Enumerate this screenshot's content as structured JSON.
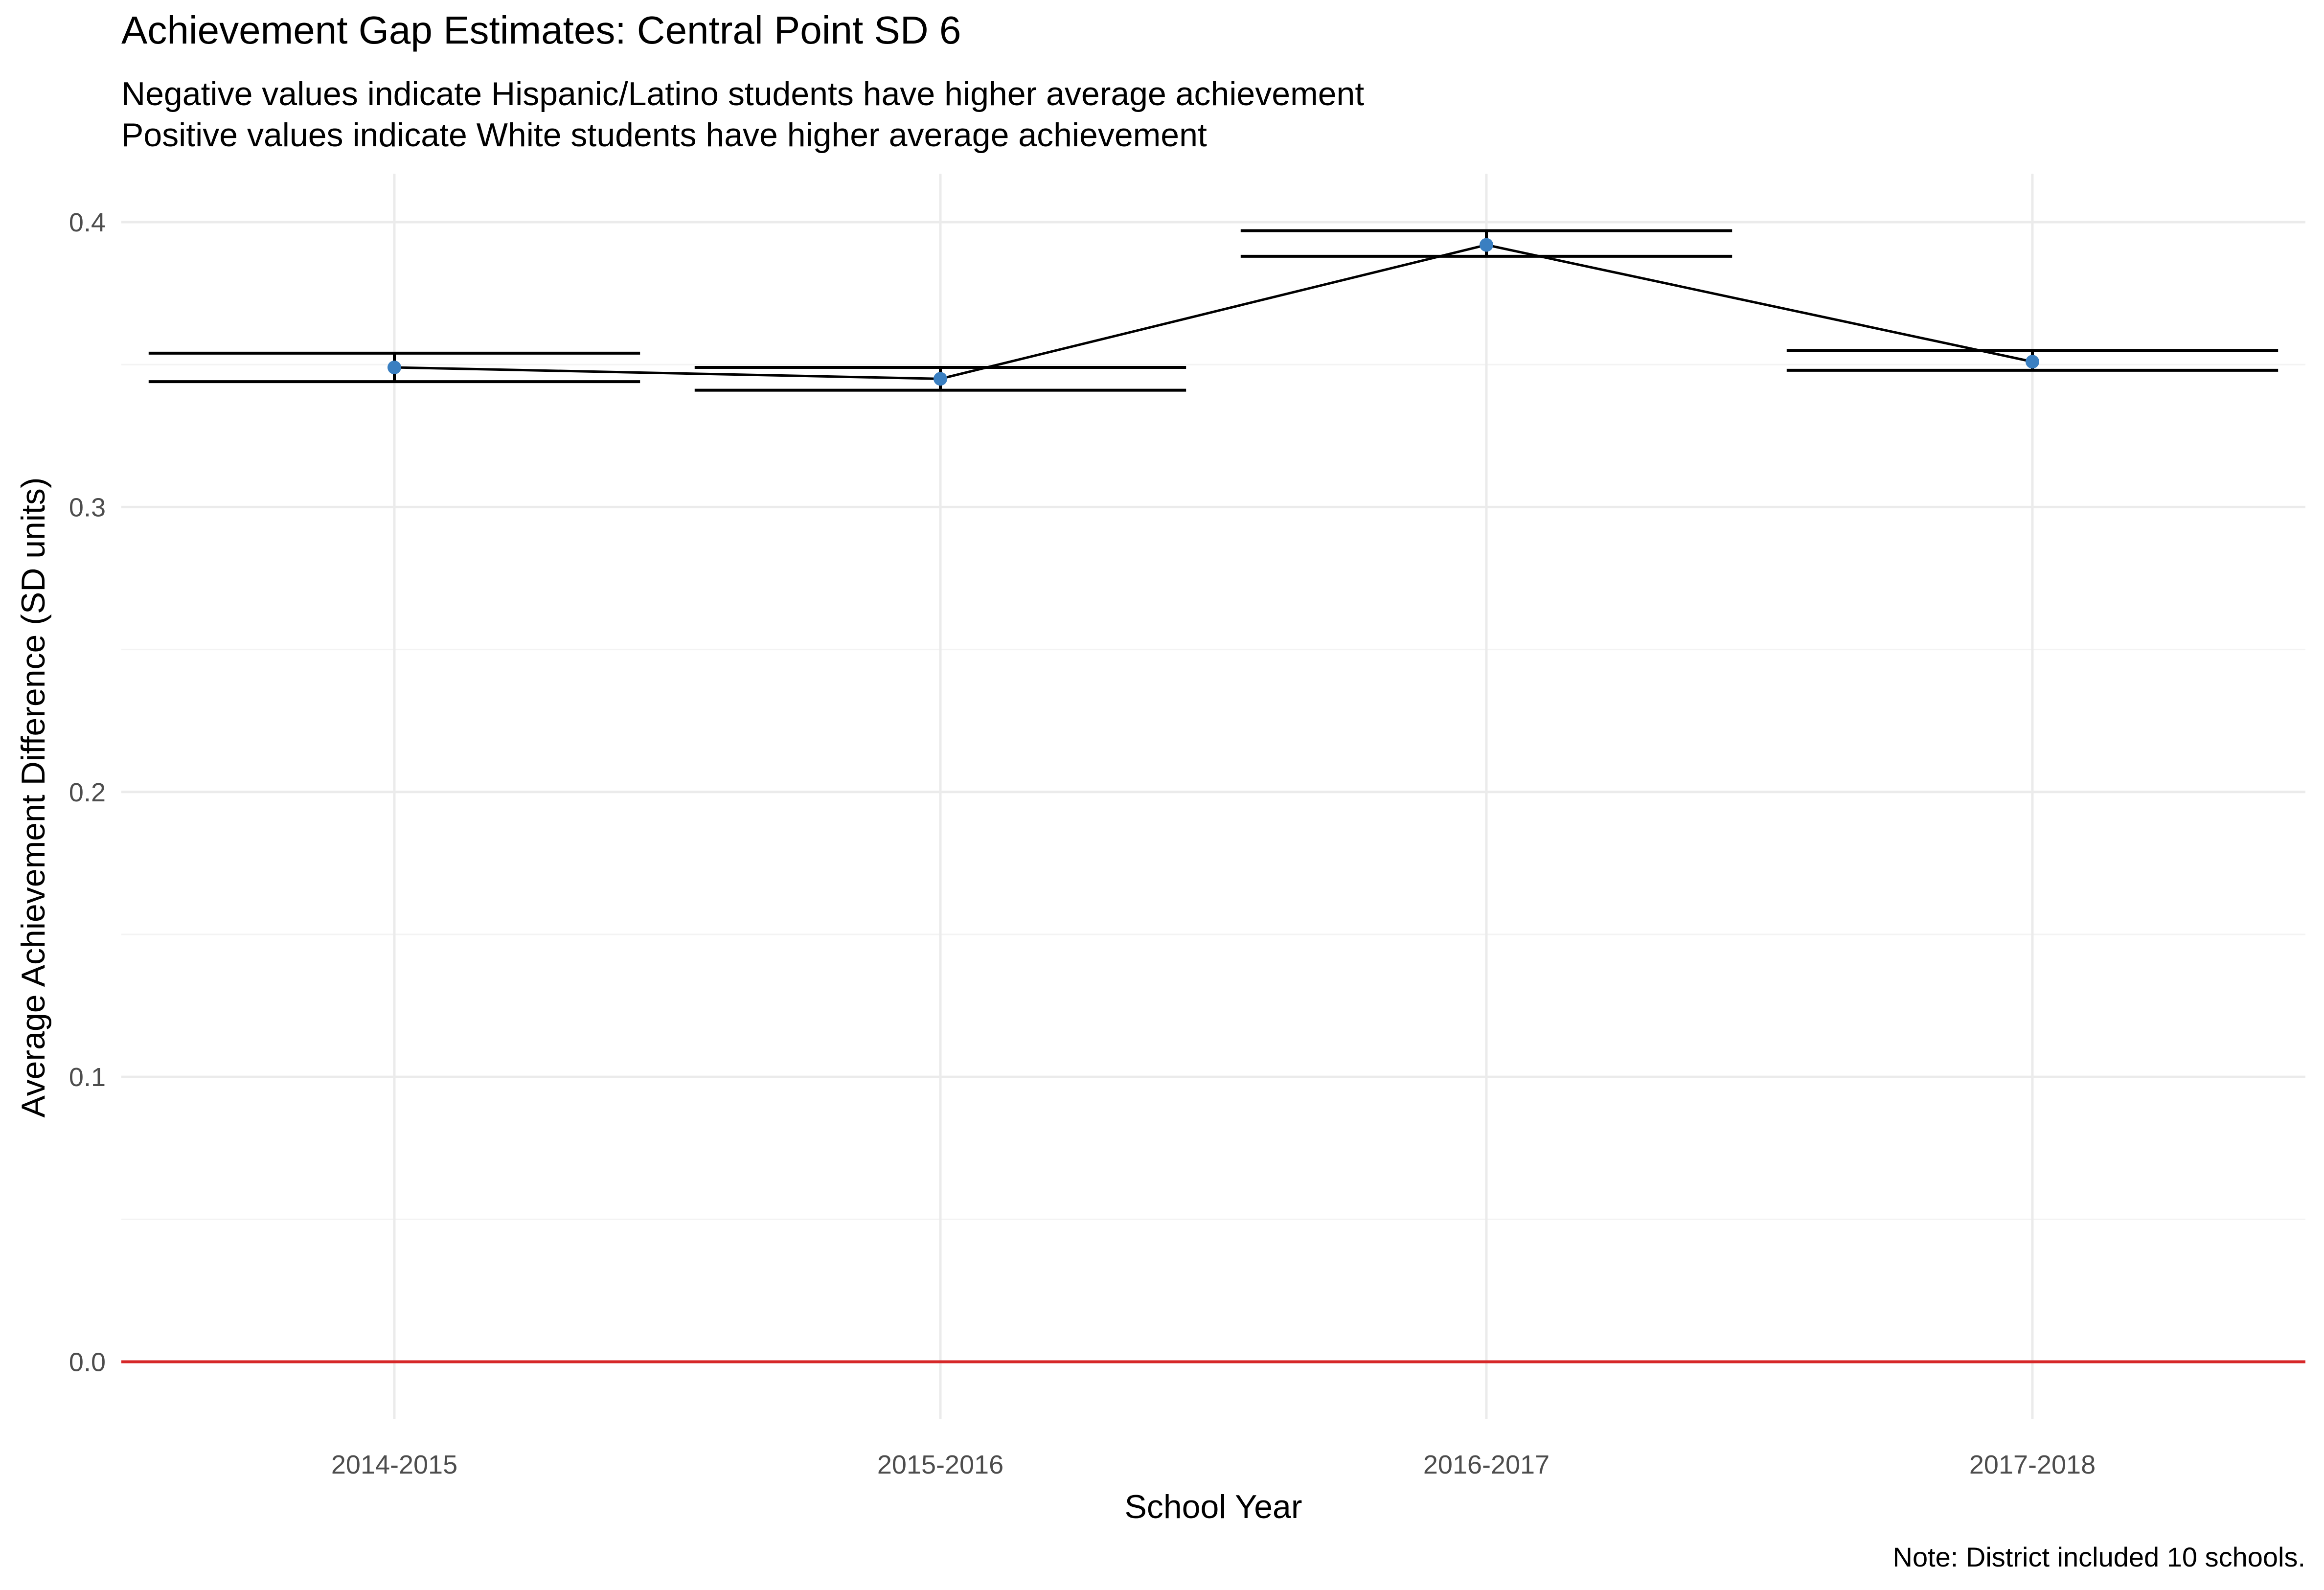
{
  "chart_data": {
    "type": "line",
    "title": "Achievement Gap Estimates: Central Point SD 6",
    "subtitle": [
      "Negative values indicate Hispanic/Latino students have higher average achievement",
      "Positive values indicate White students have higher average achievement"
    ],
    "xlabel": "School Year",
    "ylabel": "Average Achievement Difference (SD units)",
    "caption": "Note: District included 10 schools.",
    "categories": [
      "2014-2015",
      "2015-2016",
      "2016-2017",
      "2017-2018"
    ],
    "series": [
      {
        "values": [
          0.349,
          0.345,
          0.392,
          0.351
        ],
        "lower": [
          0.344,
          0.341,
          0.388,
          0.348
        ],
        "upper": [
          0.354,
          0.349,
          0.397,
          0.355
        ]
      }
    ],
    "ylim": [
      -0.02,
      0.417
    ],
    "yticks": [
      0.0,
      0.1,
      0.2,
      0.3,
      0.4
    ],
    "ytick_labels": [
      "0.0",
      "0.1",
      "0.2",
      "0.3",
      "0.4"
    ],
    "reference_line": {
      "y": 0,
      "color": "#d62728"
    },
    "grid": true,
    "legend": "none",
    "colors": {
      "point": "#3a7fc1",
      "line": "#000000",
      "grid": "#ebebeb"
    }
  }
}
